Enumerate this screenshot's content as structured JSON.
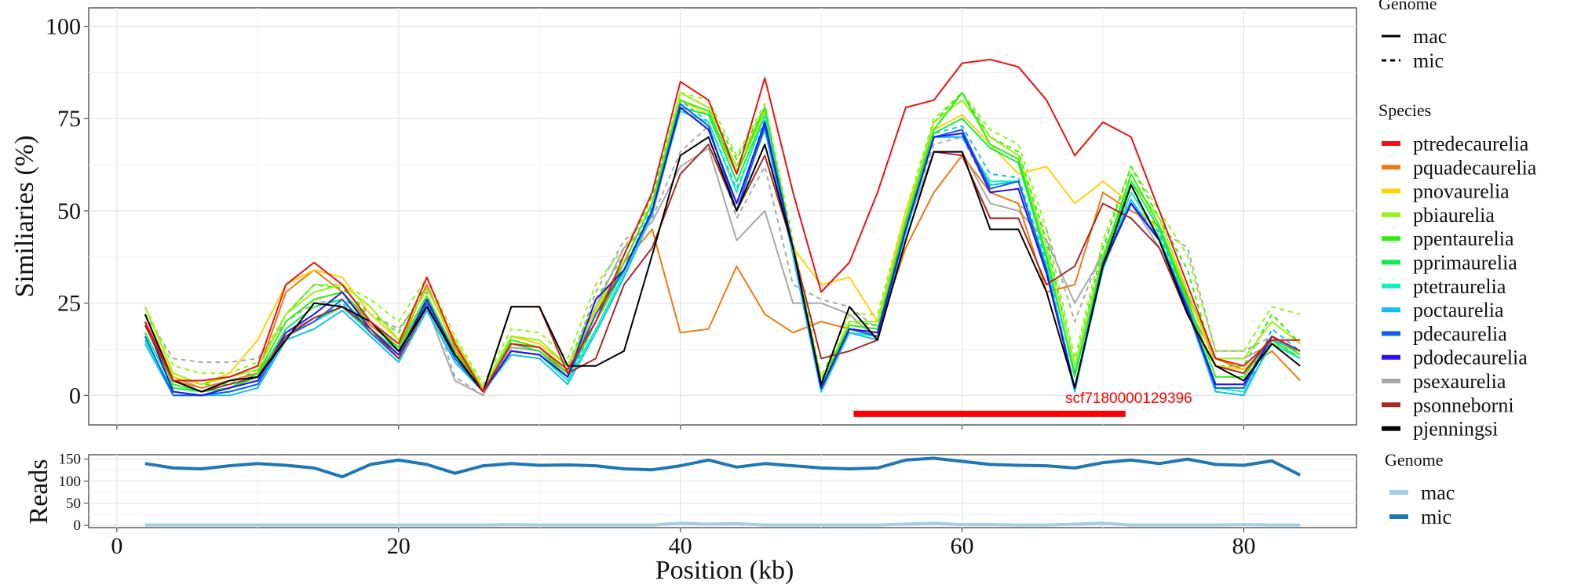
{
  "chart_data": [
    {
      "type": "line",
      "panel": "similarity",
      "xlabel": "Position (kb)",
      "ylabel": "Similiaries (%)",
      "xlim": [
        -2,
        88
      ],
      "ylim": [
        -8,
        105
      ],
      "xticks": [
        0,
        20,
        40,
        60,
        80
      ],
      "yticks": [
        0,
        25,
        50,
        75,
        100
      ],
      "grid": true,
      "x": [
        2,
        4,
        6,
        8,
        10,
        12,
        14,
        16,
        18,
        20,
        22,
        24,
        26,
        28,
        30,
        32,
        34,
        36,
        38,
        40,
        42,
        44,
        46,
        48,
        50,
        52,
        54,
        56,
        58,
        60,
        62,
        64,
        66,
        68,
        70,
        72,
        74,
        76,
        78,
        80,
        82,
        84
      ],
      "legend_genome": {
        "title": "Genome",
        "items": [
          {
            "label": "mac",
            "dash": "solid"
          },
          {
            "label": "mic",
            "dash": "dashed"
          }
        ]
      },
      "legend_species_title": "Species",
      "species": [
        {
          "name": "ptredecaurelia",
          "color": "#ee1111"
        },
        {
          "name": "pquadecaurelia",
          "color": "#f07a10"
        },
        {
          "name": "pnovaurelia",
          "color": "#ffd20a"
        },
        {
          "name": "pbiaurelia",
          "color": "#99f21a"
        },
        {
          "name": "ppentaurelia",
          "color": "#2fef10"
        },
        {
          "name": "pprimaurelia",
          "color": "#12ec50"
        },
        {
          "name": "ptetraurelia",
          "color": "#14f0b8"
        },
        {
          "name": "poctaurelia",
          "color": "#10c0ee"
        },
        {
          "name": "pdecaurelia",
          "color": "#1060f0"
        },
        {
          "name": "pdodecaurelia",
          "color": "#2a10ee"
        },
        {
          "name": "psexaurelia",
          "color": "#a8a8a8"
        },
        {
          "name": "psonneborni",
          "color": "#a52a2a"
        },
        {
          "name": "pjenningsi",
          "color": "#000000"
        }
      ],
      "series": [
        {
          "species": "psexaurelia",
          "genome": "mic",
          "values": [
            22,
            10,
            9,
            9,
            10,
            20,
            25,
            26,
            22,
            18,
            28,
            5,
            0,
            14,
            13,
            6,
            28,
            42,
            48,
            66,
            73,
            48,
            62,
            30,
            26,
            24,
            18,
            46,
            68,
            70,
            55,
            52,
            45,
            20,
            40,
            52,
            45,
            40,
            12,
            12,
            16,
            10
          ]
        },
        {
          "species": "pbiaurelia",
          "genome": "mic",
          "values": [
            24,
            8,
            6,
            6,
            9,
            22,
            30,
            30,
            26,
            20,
            32,
            16,
            3,
            18,
            17,
            10,
            30,
            40,
            52,
            82,
            80,
            65,
            79,
            42,
            5,
            22,
            22,
            50,
            75,
            82,
            72,
            68,
            45,
            10,
            42,
            62,
            50,
            38,
            12,
            12,
            24,
            22
          ]
        },
        {
          "species": "ppentaurelia",
          "genome": "mic",
          "values": [
            20,
            5,
            3,
            3,
            7,
            22,
            30,
            29,
            22,
            17,
            30,
            13,
            2,
            16,
            14,
            8,
            26,
            38,
            54,
            82,
            78,
            64,
            78,
            40,
            4,
            20,
            19,
            48,
            74,
            82,
            70,
            66,
            42,
            8,
            40,
            62,
            48,
            34,
            8,
            8,
            22,
            14
          ]
        },
        {
          "species": "poctaurelia",
          "genome": "mic",
          "values": [
            15,
            1,
            0,
            1,
            3,
            16,
            20,
            25,
            17,
            11,
            25,
            10,
            1,
            12,
            11,
            4,
            20,
            34,
            51,
            80,
            74,
            56,
            75,
            38,
            1,
            18,
            16,
            46,
            71,
            73,
            60,
            59,
            36,
            2,
            36,
            55,
            44,
            24,
            1,
            0,
            18,
            12
          ]
        },
        {
          "species": "psexaurelia",
          "genome": "mac",
          "values": [
            20,
            5,
            2,
            4,
            6,
            17,
            21,
            24,
            18,
            10,
            24,
            4,
            0,
            13,
            12,
            5,
            24,
            40,
            47,
            62,
            67,
            42,
            50,
            25,
            25,
            22,
            15,
            45,
            66,
            66,
            52,
            50,
            42,
            25,
            38,
            52,
            40,
            24,
            10,
            10,
            14,
            10
          ]
        },
        {
          "species": "pquadecaurelia",
          "genome": "mac",
          "values": [
            19,
            4,
            2,
            4,
            6,
            28,
            34,
            28,
            19,
            13,
            30,
            13,
            1,
            14,
            12,
            6,
            20,
            36,
            45,
            17,
            18,
            35,
            22,
            17,
            20,
            18,
            17,
            40,
            55,
            65,
            55,
            52,
            28,
            30,
            55,
            50,
            46,
            27,
            10,
            7,
            12,
            4
          ]
        },
        {
          "species": "pnovaurelia",
          "genome": "mac",
          "values": [
            22,
            5,
            3,
            6,
            15,
            30,
            34,
            32,
            22,
            15,
            29,
            14,
            2,
            16,
            14,
            8,
            23,
            36,
            52,
            80,
            76,
            60,
            77,
            40,
            30,
            32,
            20,
            50,
            72,
            76,
            68,
            60,
            62,
            52,
            58,
            52,
            45,
            28,
            8,
            7,
            14,
            12
          ]
        },
        {
          "species": "pbiaurelia",
          "genome": "mac",
          "values": [
            24,
            6,
            3,
            5,
            7,
            22,
            28,
            30,
            24,
            15,
            29,
            15,
            2,
            16,
            15,
            8,
            24,
            36,
            52,
            82,
            78,
            62,
            78,
            40,
            3,
            20,
            20,
            48,
            74,
            80,
            70,
            65,
            40,
            8,
            38,
            58,
            48,
            28,
            10,
            10,
            20,
            14
          ]
        },
        {
          "species": "ppentaurelia",
          "genome": "mac",
          "values": [
            19,
            3,
            1,
            2,
            6,
            20,
            26,
            28,
            20,
            13,
            27,
            12,
            1,
            15,
            13,
            6,
            22,
            36,
            52,
            80,
            77,
            60,
            78,
            40,
            3,
            19,
            18,
            47,
            72,
            82,
            68,
            64,
            38,
            5,
            37,
            60,
            46,
            26,
            5,
            5,
            16,
            11
          ]
        },
        {
          "species": "pprimaurelia",
          "genome": "mac",
          "values": [
            17,
            2,
            1,
            2,
            5,
            18,
            24,
            26,
            18,
            12,
            26,
            11,
            1,
            14,
            12,
            5,
            20,
            34,
            50,
            78,
            76,
            58,
            76,
            40,
            2,
            18,
            17,
            46,
            71,
            75,
            67,
            63,
            37,
            6,
            36,
            58,
            45,
            25,
            3,
            3,
            15,
            10
          ]
        },
        {
          "species": "ptetraurelia",
          "genome": "mac",
          "values": [
            15,
            1,
            0,
            1,
            3,
            16,
            20,
            24,
            17,
            10,
            24,
            10,
            1,
            12,
            11,
            4,
            18,
            33,
            50,
            77,
            74,
            55,
            76,
            38,
            1,
            17,
            16,
            44,
            70,
            70,
            58,
            58,
            35,
            2,
            34,
            55,
            43,
            24,
            2,
            1,
            14,
            10
          ]
        },
        {
          "species": "poctaurelia",
          "genome": "mac",
          "values": [
            14,
            0,
            0,
            0,
            2,
            15,
            18,
            23,
            16,
            9,
            23,
            9,
            1,
            11,
            10,
            3,
            17,
            32,
            49,
            78,
            72,
            52,
            72,
            38,
            1,
            17,
            15,
            45,
            70,
            70,
            57,
            58,
            34,
            1,
            35,
            53,
            42,
            23,
            1,
            0,
            15,
            12
          ]
        },
        {
          "species": "pdecaurelia",
          "genome": "mac",
          "values": [
            16,
            0,
            0,
            1,
            3,
            16,
            20,
            26,
            17,
            10,
            25,
            10,
            1,
            12,
            11,
            5,
            22,
            34,
            50,
            79,
            73,
            50,
            73,
            40,
            2,
            18,
            16,
            45,
            70,
            72,
            56,
            58,
            34,
            2,
            36,
            52,
            42,
            24,
            2,
            2,
            16,
            12
          ]
        },
        {
          "species": "pdodecaurelia",
          "genome": "mac",
          "values": [
            20,
            1,
            0,
            2,
            4,
            17,
            22,
            28,
            18,
            11,
            26,
            11,
            1,
            12,
            11,
            5,
            26,
            34,
            50,
            78,
            72,
            52,
            74,
            40,
            2,
            18,
            17,
            45,
            70,
            71,
            55,
            56,
            33,
            2,
            35,
            52,
            42,
            23,
            3,
            3,
            16,
            12
          ]
        },
        {
          "species": "psonneborni",
          "genome": "mac",
          "values": [
            19,
            4,
            1,
            3,
            5,
            16,
            21,
            24,
            18,
            10,
            24,
            11,
            1,
            24,
            24,
            6,
            10,
            30,
            40,
            60,
            68,
            50,
            65,
            40,
            10,
            12,
            15,
            42,
            66,
            65,
            48,
            48,
            30,
            35,
            52,
            48,
            40,
            22,
            8,
            6,
            16,
            12
          ]
        },
        {
          "species": "pjenningsi",
          "genome": "mac",
          "values": [
            22,
            4,
            1,
            4,
            5,
            15,
            25,
            24,
            20,
            12,
            24,
            11,
            1,
            24,
            24,
            8,
            8,
            12,
            38,
            65,
            70,
            50,
            68,
            40,
            3,
            24,
            15,
            42,
            66,
            66,
            45,
            45,
            28,
            2,
            35,
            57,
            42,
            22,
            8,
            4,
            14,
            8
          ]
        },
        {
          "species": "ptredecaurelia",
          "genome": "mac",
          "values": [
            20,
            4,
            4,
            5,
            8,
            30,
            36,
            30,
            20,
            14,
            32,
            14,
            1,
            14,
            13,
            7,
            20,
            38,
            55,
            85,
            80,
            60,
            86,
            55,
            28,
            36,
            55,
            78,
            80,
            90,
            91,
            89,
            80,
            65,
            74,
            70,
            50,
            30,
            10,
            8,
            15,
            15
          ]
        }
      ],
      "annotation": {
        "label": "scf7180000129396",
        "start_kb": 52.3,
        "end_kb": 71.6,
        "y": -5,
        "color": "#ff0000"
      }
    },
    {
      "type": "line",
      "panel": "reads",
      "xlabel": "Position (kb)",
      "ylabel": "Reads",
      "xlim": [
        -2,
        88
      ],
      "ylim": [
        -5,
        160
      ],
      "yticks": [
        0,
        50,
        100,
        150
      ],
      "grid": true,
      "x": [
        2,
        4,
        6,
        8,
        10,
        12,
        14,
        16,
        18,
        20,
        22,
        24,
        26,
        28,
        30,
        32,
        34,
        36,
        38,
        40,
        42,
        44,
        46,
        48,
        50,
        52,
        54,
        56,
        58,
        60,
        62,
        64,
        66,
        68,
        70,
        72,
        74,
        76,
        78,
        80,
        82,
        84
      ],
      "legend": {
        "title": "Genome",
        "items": [
          {
            "label": "mac",
            "color": "#a6cee3"
          },
          {
            "label": "mic",
            "color": "#1f78b4"
          }
        ]
      },
      "series": [
        {
          "name": "mac",
          "color": "#a6cee3",
          "values": [
            1,
            1,
            1,
            1,
            1,
            1,
            1,
            1,
            1,
            1,
            1,
            1,
            1,
            2,
            1,
            1,
            1,
            1,
            1,
            5,
            3,
            4,
            1,
            1,
            1,
            1,
            1,
            3,
            5,
            2,
            2,
            1,
            1,
            3,
            5,
            1,
            1,
            1,
            1,
            2,
            1,
            1
          ]
        },
        {
          "name": "mic",
          "color": "#1f78b4",
          "values": [
            140,
            130,
            128,
            135,
            140,
            136,
            130,
            110,
            138,
            148,
            138,
            118,
            135,
            140,
            136,
            137,
            135,
            128,
            126,
            135,
            148,
            132,
            140,
            135,
            130,
            128,
            130,
            148,
            152,
            145,
            138,
            136,
            135,
            130,
            142,
            148,
            140,
            150,
            138,
            136,
            146,
            114
          ]
        }
      ]
    }
  ]
}
